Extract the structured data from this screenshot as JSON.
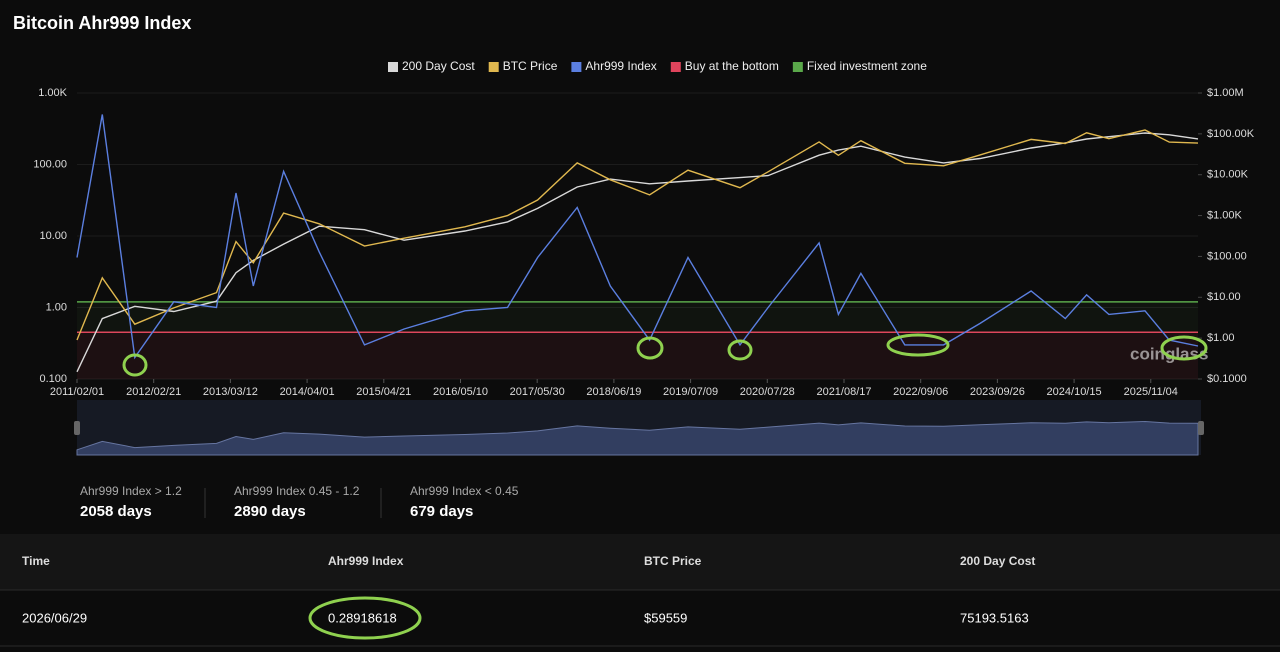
{
  "header": {
    "title": "Bitcoin Ahr999 Index"
  },
  "chart_data": {
    "type": "line",
    "xlim": [
      "2011/02/01",
      "2026/06/29"
    ],
    "xticks": [
      "2011/02/01",
      "2012/02/21",
      "2013/03/12",
      "2014/04/01",
      "2015/04/21",
      "2016/05/10",
      "2017/05/30",
      "2018/06/19",
      "2019/07/09",
      "2020/07/28",
      "2021/08/17",
      "2022/09/06",
      "2023/09/26",
      "2024/10/15",
      "2025/11/04"
    ],
    "log_scale": true,
    "ylim": [
      0.1,
      1000
    ],
    "yticks": [
      {
        "value": 0.1,
        "label": "0.100"
      },
      {
        "value": 1,
        "label": "1.00"
      },
      {
        "value": 10,
        "label": "10.00"
      },
      {
        "value": 100,
        "label": "100.00"
      },
      {
        "value": 1000,
        "label": "1.00K"
      }
    ],
    "y2lim": [
      0.1,
      1000000
    ],
    "y2ticks": [
      {
        "value": 0.1,
        "label": "$0.1000"
      },
      {
        "value": 1,
        "label": "$1.00"
      },
      {
        "value": 10,
        "label": "$10.00"
      },
      {
        "value": 100,
        "label": "$100.00"
      },
      {
        "value": 1000,
        "label": "$1.00K"
      },
      {
        "value": 10000,
        "label": "$10.00K"
      },
      {
        "value": 100000,
        "label": "$100.00K"
      },
      {
        "value": 1000000,
        "label": "$1.00M"
      }
    ],
    "x": [
      "2011/02/01",
      "2011/06/08",
      "2011/11/18",
      "2012/06/01",
      "2013/01/01",
      "2013/04/09",
      "2013/07/05",
      "2013/12/04",
      "2014/06/01",
      "2015/01/14",
      "2015/08/01",
      "2016/06/01",
      "2017/01/01",
      "2017/06/01",
      "2017/12/17",
      "2018/06/01",
      "2018/12/15",
      "2019/06/26",
      "2020/03/13",
      "2020/08/01",
      "2021/04/14",
      "2021/07/20",
      "2021/11/10",
      "2022/06/18",
      "2022/12/30",
      "2023/07/01",
      "2024/03/13",
      "2024/09/01",
      "2024/12/17",
      "2025/04/08",
      "2025/10/06",
      "2026/02/05",
      "2026/06/29"
    ],
    "series": [
      {
        "name": "200 Day Cost",
        "color": "#d9d9d9",
        "axis": "y2",
        "values": [
          0.15,
          3,
          6,
          4.5,
          8,
          40,
          80,
          200,
          550,
          450,
          250,
          420,
          700,
          1500,
          5000,
          7800,
          6000,
          7000,
          8500,
          9500,
          30000,
          40000,
          50000,
          27000,
          19500,
          25000,
          45000,
          60000,
          75000,
          85000,
          105000,
          95000,
          75193.5163
        ]
      },
      {
        "name": "BTC Price",
        "color": "#e0b84f",
        "axis": "y2",
        "values": [
          0.9,
          30,
          2.2,
          5.5,
          13,
          230,
          70,
          1150,
          630,
          180,
          280,
          530,
          1000,
          2400,
          19500,
          7500,
          3200,
          12900,
          4800,
          11800,
          63500,
          29800,
          68000,
          19000,
          16500,
          30500,
          73000,
          58000,
          106000,
          76000,
          124000,
          63000,
          59559
        ]
      },
      {
        "name": "Ahr999 Index",
        "color": "#5b7fe0",
        "values": [
          5,
          500,
          0.2,
          1.2,
          1.0,
          40,
          2,
          80,
          6,
          0.3,
          0.5,
          0.9,
          1.0,
          5,
          25,
          2,
          0.35,
          5,
          0.3,
          1.0,
          8,
          0.8,
          3,
          0.3,
          0.3,
          0.6,
          1.7,
          0.7,
          1.5,
          0.8,
          0.9,
          0.35,
          0.28918618
        ]
      },
      {
        "name": "Buy at the bottom",
        "color": "#e0445c",
        "value": 0.45
      },
      {
        "name": "Fixed investment zone",
        "color": "#5aa84a",
        "value": 1.2
      }
    ],
    "watermark": "coinglass"
  },
  "stats": [
    {
      "label": "Ahr999 Index > 1.2",
      "value": "2058 days"
    },
    {
      "label": "Ahr999 Index 0.45 - 1.2",
      "value": "2890 days"
    },
    {
      "label": "Ahr999 Index < 0.45",
      "value": "679 days"
    }
  ],
  "table": {
    "columns": [
      "Time",
      "Ahr999 Index",
      "BTC Price",
      "200 Day Cost"
    ],
    "rows": [
      [
        "2026/06/29",
        "0.28918618",
        "$59559",
        "75193.5163"
      ]
    ]
  }
}
